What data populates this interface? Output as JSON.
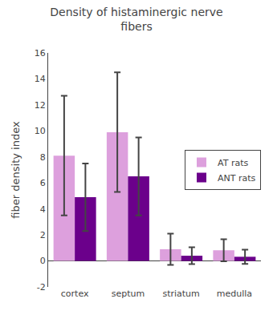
{
  "chart_data": {
    "type": "bar",
    "title": "Density of histaminergic nerve\nfibers",
    "ylabel": "fiber density index",
    "categories": [
      "cortex",
      "septum",
      "striatum",
      "medulla"
    ],
    "series": [
      {
        "name": "AT rats",
        "color": "#DDA0DD",
        "values": [
          8.1,
          9.9,
          0.9,
          0.82
        ],
        "errors": [
          4.6,
          4.6,
          1.2,
          0.85
        ]
      },
      {
        "name": "ANT rats",
        "color": "#6B008B",
        "values": [
          4.9,
          6.5,
          0.4,
          0.32
        ],
        "errors": [
          2.6,
          3.0,
          0.65,
          0.55
        ]
      }
    ],
    "ylim": [
      -2,
      16
    ],
    "yticks": [
      -2,
      0,
      2,
      4,
      6,
      8,
      10,
      12,
      14,
      16
    ],
    "grid": false,
    "legend": "right"
  }
}
